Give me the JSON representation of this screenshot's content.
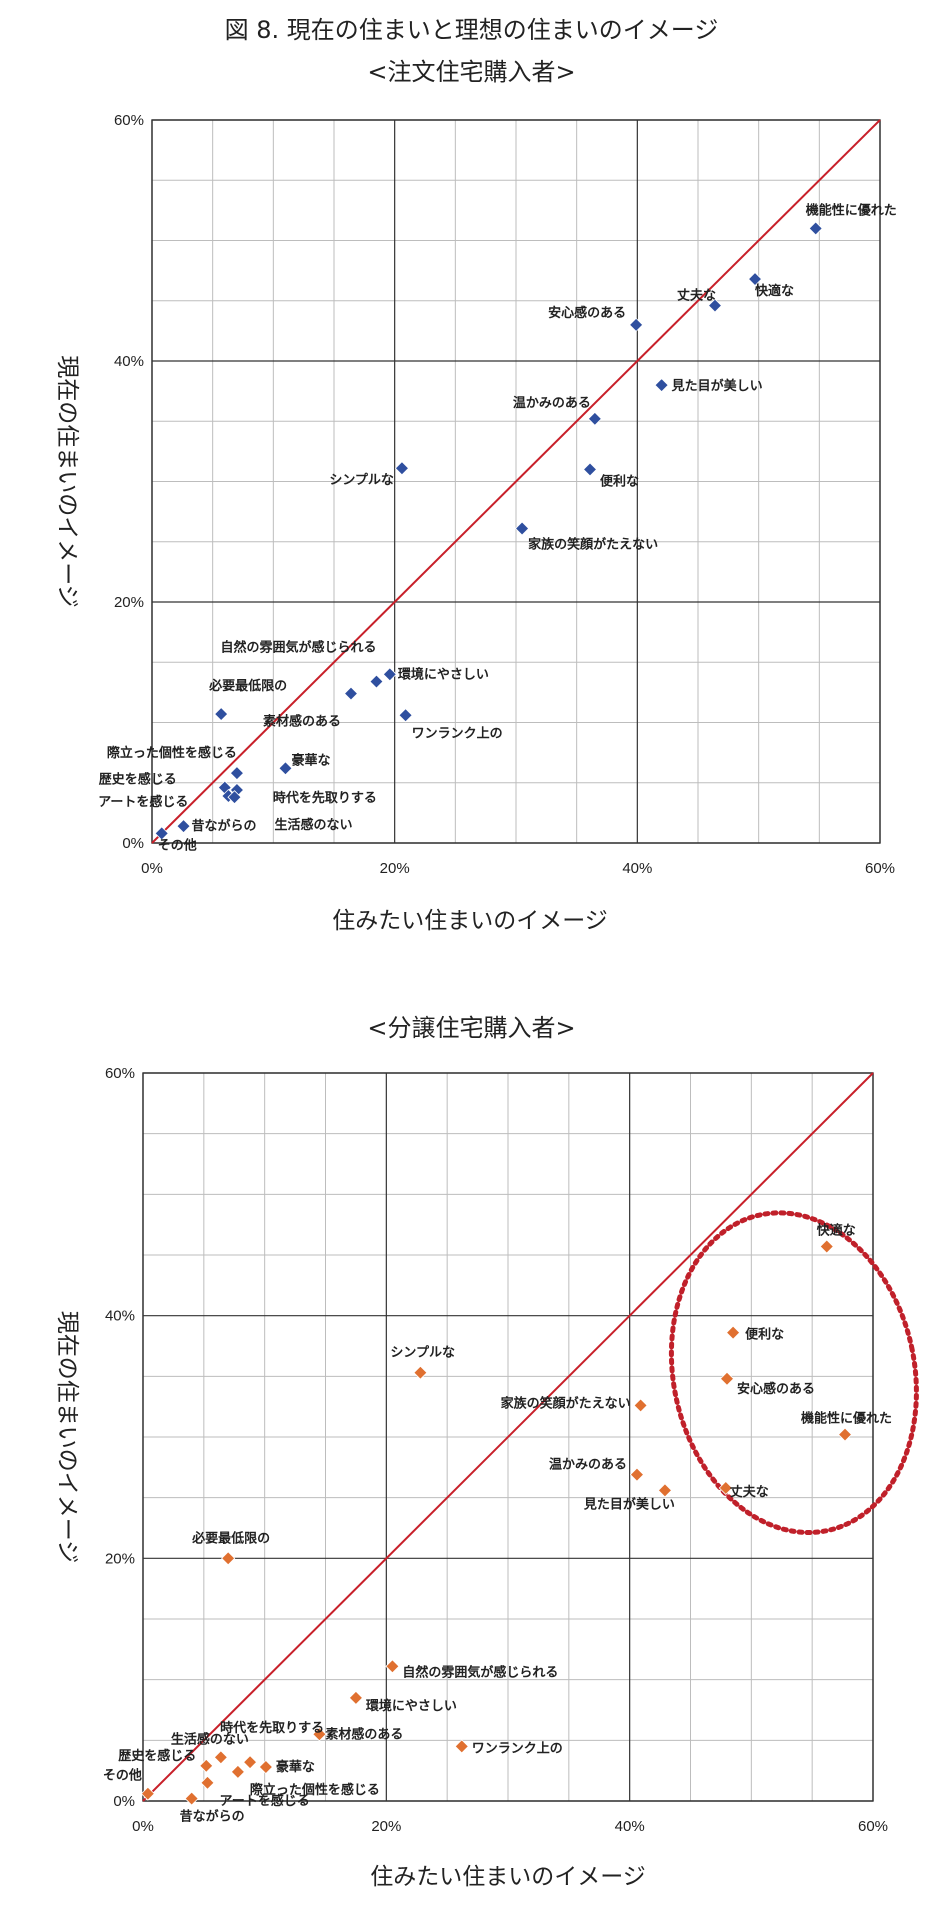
{
  "figure": {
    "title": "図 8.  現在の住まいと理想の住まいのイメージ"
  },
  "chart_data": [
    {
      "type": "scatter",
      "title": "<注文住宅購入者>",
      "xlabel": "住みたい住まいのイメージ",
      "ylabel": "現在の住まいのイメージ",
      "xlim": [
        0,
        60
      ],
      "ylim": [
        0,
        60
      ],
      "x_ticks": [
        "0%",
        "20%",
        "40%",
        "60%"
      ],
      "y_ticks": [
        "0%",
        "20%",
        "40%",
        "60%"
      ],
      "grid": true,
      "reference_line": "y = x",
      "marker": "diamond",
      "color": "#2f4f9f",
      "points": [
        {
          "label": "機能性に優れた",
          "x": 54.7,
          "y": 51.0
        },
        {
          "label": "快適な",
          "x": 49.7,
          "y": 46.8
        },
        {
          "label": "丈夫な",
          "x": 46.4,
          "y": 44.6
        },
        {
          "label": "安心感のある",
          "x": 39.9,
          "y": 43.0
        },
        {
          "label": "見た目が美しい",
          "x": 42.0,
          "y": 38.0
        },
        {
          "label": "温かみのある",
          "x": 36.5,
          "y": 35.2
        },
        {
          "label": "便利な",
          "x": 36.1,
          "y": 31.0
        },
        {
          "label": "シンプルな",
          "x": 20.6,
          "y": 31.1
        },
        {
          "label": "家族の笑顔がたえない",
          "x": 30.5,
          "y": 26.1
        },
        {
          "label": "自然の雰囲気が感じられる",
          "x": 18.5,
          "y": 13.4
        },
        {
          "label": "環境にやさしい",
          "x": 19.6,
          "y": 14.0
        },
        {
          "label": "必要最低限の",
          "x": 5.7,
          "y": 10.7
        },
        {
          "label": "素材感のある",
          "x": 16.4,
          "y": 12.4
        },
        {
          "label": "ワンランク上の",
          "x": 20.9,
          "y": 10.6
        },
        {
          "label": "際立った個性を感じる",
          "x": 7.0,
          "y": 5.8
        },
        {
          "label": "豪華な",
          "x": 11.0,
          "y": 6.2
        },
        {
          "label": "歴史を感じる",
          "x": 6.0,
          "y": 4.6
        },
        {
          "label": "アートを感じる",
          "x": 6.3,
          "y": 3.9
        },
        {
          "label": "時代を先取りする",
          "x": 7.0,
          "y": 4.4
        },
        {
          "label": "生活感のない",
          "x": 6.8,
          "y": 3.8
        },
        {
          "label": "昔ながらの",
          "x": 2.6,
          "y": 1.4
        },
        {
          "label": "その他",
          "x": 0.8,
          "y": 0.8
        }
      ]
    },
    {
      "type": "scatter",
      "title": "<分譲住宅購入者>",
      "xlabel": "住みたい住まいのイメージ",
      "ylabel": "現在の住まいのイメージ",
      "xlim": [
        0,
        60
      ],
      "ylim": [
        0,
        60
      ],
      "x_ticks": [
        "0%",
        "20%",
        "40%",
        "60%"
      ],
      "y_ticks": [
        "0%",
        "20%",
        "40%",
        "60%"
      ],
      "grid": true,
      "reference_line": "y = x",
      "marker": "diamond",
      "color": "#e07030",
      "highlight_color": "#c0202a",
      "points": [
        {
          "label": "快適な",
          "x": 56.2,
          "y": 45.7
        },
        {
          "label": "便利な",
          "x": 48.5,
          "y": 38.6
        },
        {
          "label": "安心感のある",
          "x": 48.0,
          "y": 34.8
        },
        {
          "label": "機能性に優れた",
          "x": 57.7,
          "y": 30.2
        },
        {
          "label": "丈夫な",
          "x": 47.9,
          "y": 25.8
        },
        {
          "label": "見た目が美しい",
          "x": 42.9,
          "y": 25.6
        },
        {
          "label": "温かみのある",
          "x": 40.6,
          "y": 26.9
        },
        {
          "label": "家族の笑顔がたえない",
          "x": 40.9,
          "y": 32.6
        },
        {
          "label": "シンプルな",
          "x": 22.8,
          "y": 35.3
        },
        {
          "label": "必要最低限の",
          "x": 7.0,
          "y": 20.0
        },
        {
          "label": "自然の雰囲気が感じられる",
          "x": 20.5,
          "y": 11.1
        },
        {
          "label": "環境にやさしい",
          "x": 17.5,
          "y": 8.5
        },
        {
          "label": "素材感のある",
          "x": 14.5,
          "y": 5.5
        },
        {
          "label": "ワンランク上の",
          "x": 26.2,
          "y": 4.5
        },
        {
          "label": "時代を先取りする",
          "x": 8.8,
          "y": 3.2
        },
        {
          "label": "生活感のない",
          "x": 6.4,
          "y": 3.6
        },
        {
          "label": "豪華な",
          "x": 10.1,
          "y": 2.8
        },
        {
          "label": "歴史を感じる",
          "x": 5.2,
          "y": 2.9
        },
        {
          "label": "際立った個性を感じる",
          "x": 7.8,
          "y": 2.4
        },
        {
          "label": "アートを感じる",
          "x": 5.3,
          "y": 1.5
        },
        {
          "label": "昔ながらの",
          "x": 4.0,
          "y": 0.2
        },
        {
          "label": "その他",
          "x": 0.4,
          "y": 0.6
        }
      ]
    }
  ]
}
